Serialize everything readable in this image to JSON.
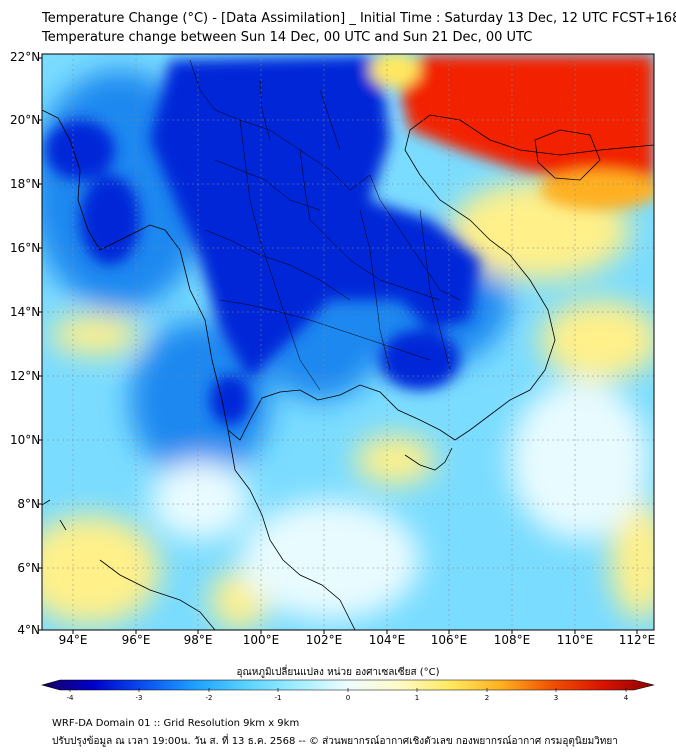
{
  "title": {
    "line1": "Temperature Change (°C) - [Data Assimilation] _ Initial Time : Saturday 13 Dec, 12 UTC FCST+168",
    "line2": "Temperature change between Sun 14 Dec, 00 UTC and Sun 21 Dec, 00 UTC"
  },
  "map": {
    "lat_labels": [
      "22°N",
      "20°N",
      "18°N",
      "16°N",
      "14°N",
      "12°N",
      "10°N",
      "8°N",
      "6°N",
      "4°N"
    ],
    "lon_labels": [
      "94°E",
      "96°E",
      "98°E",
      "100°E",
      "102°E",
      "104°E",
      "106°E",
      "108°E",
      "110°E",
      "112°E"
    ],
    "lat_range": [
      4,
      22
    ],
    "lon_range": [
      93,
      112.5
    ],
    "colors": {
      "strong_cooling": "#0028d8",
      "cooling": "#1e88f0",
      "slight_cooling": "#7adcff",
      "neutral": "#e8fbff",
      "warming": "#fff08a",
      "strong_warming": "#f22000",
      "coastline": "#000000"
    }
  },
  "colorbar": {
    "title": "อุณหภูมิเปลี่ยนแปลง หน่วย องศาเซลเซียส (°C)",
    "ticks": [
      "-4",
      "-3",
      "-2",
      "-1",
      "0",
      "1",
      "2",
      "3",
      "4"
    ],
    "range": [
      -4,
      4
    ],
    "colors": [
      "#1a0060",
      "#0000c8",
      "#0a50f0",
      "#1ea0ff",
      "#5ad2ff",
      "#a0eeff",
      "#eefcff",
      "#fffbc8",
      "#ffe860",
      "#ffb020",
      "#f05000",
      "#d81400",
      "#8c0000"
    ]
  },
  "footer": {
    "line1": "WRF-DA Domain 01 :: Grid Resolution 9km x 9km",
    "line2": "ปรับปรุงข้อมูล ณ เวลา 19:00น. วัน ส. ที่ 13 ธ.ค. 2568 -- © ส่วนพยากรณ์อากาศเชิงตัวเลข กองพยากรณ์อากาศ กรมอุตุนิยมวิทยา"
  }
}
